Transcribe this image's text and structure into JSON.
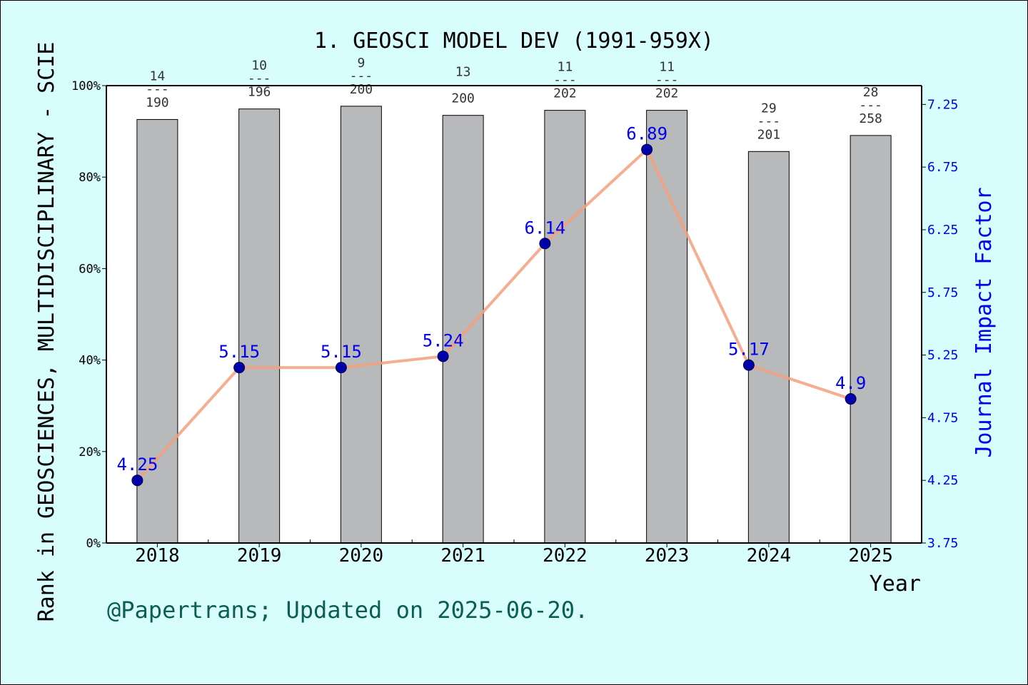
{
  "chart_data": {
    "type": "bar",
    "title": "1. GEOSCI MODEL DEV (1991-959X)",
    "xlabel": "Year",
    "ylabel": "Rank in GEOSCIENCES, MULTIDISCIPLINARY - SCIE",
    "y2label": "Journal Impact Factor",
    "categories": [
      "2018",
      "2019",
      "2020",
      "2021",
      "2022",
      "2023",
      "2024",
      "2025"
    ],
    "series": [
      {
        "type": "bar",
        "axis": "left",
        "values": [
          92.6,
          94.9,
          95.5,
          93.5,
          94.6,
          94.6,
          85.6,
          89.1
        ]
      },
      {
        "type": "line",
        "axis": "right",
        "values": [
          4.25,
          5.15,
          5.15,
          5.24,
          6.14,
          6.89,
          5.17,
          4.9
        ],
        "labels": [
          "4.25",
          "5.15",
          "5.15",
          "5.24",
          "6.14",
          "6.89",
          "5.17",
          "4.9"
        ]
      }
    ],
    "rank_labels": [
      {
        "rank": "14",
        "sep": "---",
        "total": "190"
      },
      {
        "rank": "10",
        "sep": "---",
        "total": "196"
      },
      {
        "rank": "9",
        "sep": "---",
        "total": "200"
      },
      {
        "rank": "13",
        "sep": "---",
        "total": "200"
      },
      {
        "rank": "11",
        "sep": "---",
        "total": "202"
      },
      {
        "rank": "11",
        "sep": "---",
        "total": "202"
      },
      {
        "rank": "29",
        "sep": "---",
        "total": "201"
      },
      {
        "rank": "28",
        "sep": "---",
        "total": "258"
      }
    ],
    "ylim": [
      0,
      100
    ],
    "yticks": [
      "0%",
      "20%",
      "40%",
      "60%",
      "80%",
      "100%"
    ],
    "y2lim": [
      3.75,
      7.4
    ],
    "y2ticks": [
      "3.75",
      "4.25",
      "4.75",
      "5.25",
      "5.75",
      "6.25",
      "6.75",
      "7.25"
    ],
    "grid": false,
    "colors": {
      "bar": "#b8b9bb",
      "line": "#f4a07c",
      "marker": "#0000aa",
      "right_axis": "#0000ee",
      "background": "#d8fdfd",
      "footer": "#0b5e50"
    }
  },
  "footer": "@Papertrans; Updated on 2025-06-20."
}
